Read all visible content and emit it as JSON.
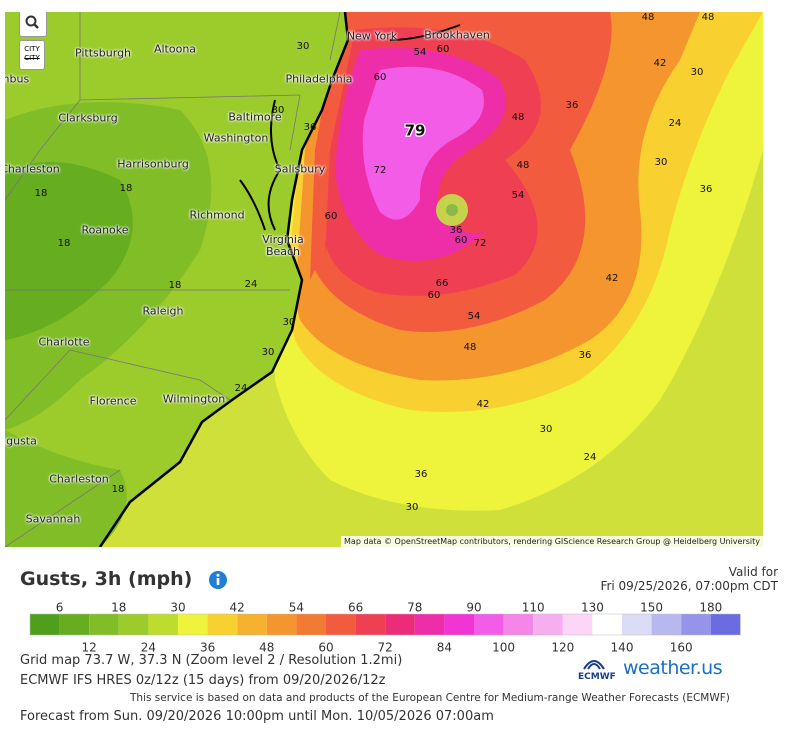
{
  "map": {
    "city_toggle": "CITY",
    "city_labels": [
      "mbus",
      "Pittsburgh",
      "Altoona",
      "New York",
      "Brookhaven",
      "Philadelphia",
      "Baltimore",
      "Clarksburg",
      "Washington",
      "Harrisonburg",
      "Charleston",
      "Salisbury",
      "Richmond",
      "Roanoke",
      "Virginia Beach",
      "Raleigh",
      "Charlotte",
      "Florence",
      "Wilmington",
      "ugusta",
      "Charleston",
      "Savannah"
    ],
    "contour_labels": [
      30,
      48,
      48,
      54,
      60,
      60,
      42,
      30,
      36,
      30,
      36,
      48,
      24,
      79,
      72,
      48,
      30,
      36,
      18,
      18,
      54,
      60,
      36,
      60,
      72,
      18,
      42,
      24,
      18,
      66,
      60,
      54,
      30,
      48,
      30,
      36,
      24,
      42,
      30,
      24,
      36,
      18,
      30
    ],
    "attribution": "Map data © OpenStreetMap contributors, rendering GIScience Research Group @ Heidelberg University"
  },
  "legend": {
    "title": "Gusts, 3h (mph)",
    "valid_for": "Valid for",
    "valid_time": "Fri 09/25/2026, 07:00pm CDT",
    "thresholds": [
      6,
      12,
      18,
      24,
      30,
      36,
      42,
      48,
      54,
      60,
      66,
      72,
      78,
      84,
      90,
      100,
      110,
      120,
      130,
      140,
      150,
      160,
      180
    ],
    "colors": [
      "#4f9e1c",
      "#66ad20",
      "#80bd27",
      "#9ccb2c",
      "#bedb30",
      "#eef43c",
      "#f8d030",
      "#f6b22e",
      "#f4952e",
      "#f37a33",
      "#f25b3e",
      "#ef3f52",
      "#ec2c78",
      "#ee2ea8",
      "#f035d4",
      "#f25ce6",
      "#f486ea",
      "#f7aef0",
      "#fbd6f6",
      "#ffffff",
      "#dcdcf6",
      "#b8b8f0",
      "#9494ea",
      "#6c6ce2"
    ]
  },
  "footer": {
    "grid_info": "Grid map 73.7 W, 37.3 N (Zoom level 2 / Resolution 1.2mi)",
    "model_info": "ECMWF IFS HRES 0z/12z (15 days) from 09/20/2026/12z",
    "disclaimer": "This service is based on data and products of the European Centre for Medium-range Weather Forecasts (ECMWF)",
    "forecast_range": "Forecast from Sun. 09/20/2026 10:00pm until Mon. 10/05/2026 07:00am",
    "logos": [
      "ECMWF",
      "weather.us"
    ]
  }
}
